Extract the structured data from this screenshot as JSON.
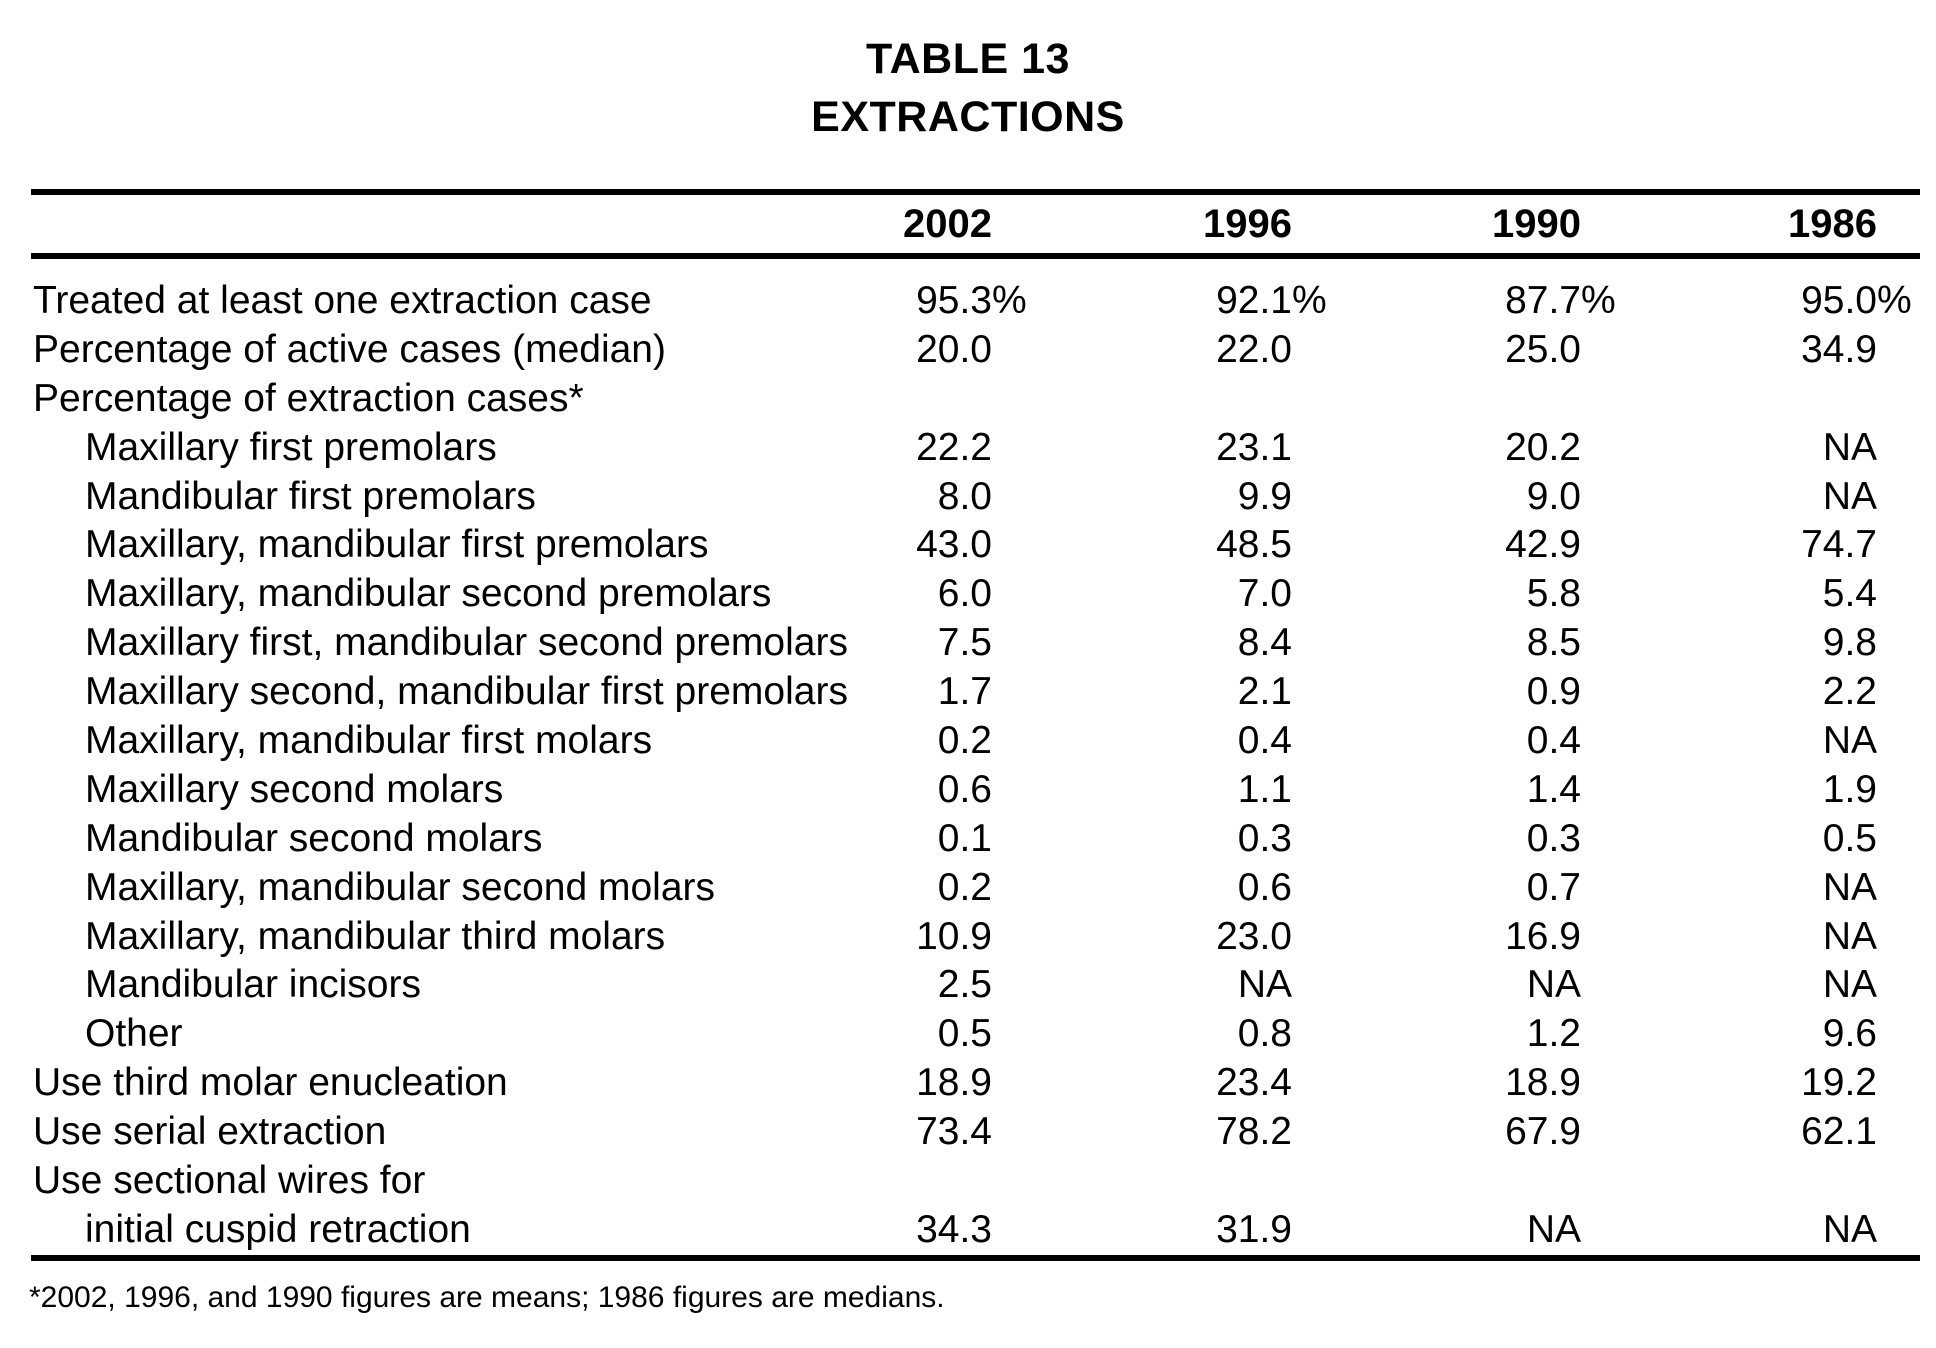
{
  "page": {
    "background_color": "#ffffff",
    "text_color": "#000000"
  },
  "title": {
    "line1": "TABLE 13",
    "line2": "EXTRACTIONS"
  },
  "table": {
    "columns": [
      "2002",
      "1996",
      "1990",
      "1986"
    ],
    "rows": [
      {
        "label": "Treated at least one extraction case",
        "indent": 0,
        "suffix": "%",
        "values": [
          "95.3",
          "92.1",
          "87.7",
          "95.0"
        ]
      },
      {
        "label": "Percentage of active cases (median)",
        "indent": 0,
        "values": [
          "20.0",
          "22.0",
          "25.0",
          "34.9"
        ]
      },
      {
        "label": "Percentage of extraction cases*",
        "indent": 0,
        "values": [
          "",
          "",
          "",
          ""
        ]
      },
      {
        "label": "Maxillary first premolars",
        "indent": 1,
        "values": [
          "22.2",
          "23.1",
          "20.2",
          "NA"
        ]
      },
      {
        "label": "Mandibular first premolars",
        "indent": 1,
        "values": [
          "8.0",
          "9.9",
          "9.0",
          "NA"
        ]
      },
      {
        "label": "Maxillary, mandibular first premolars",
        "indent": 1,
        "values": [
          "43.0",
          "48.5",
          "42.9",
          "74.7"
        ]
      },
      {
        "label": "Maxillary, mandibular second premolars",
        "indent": 1,
        "values": [
          "6.0",
          "7.0",
          "5.8",
          "5.4"
        ]
      },
      {
        "label": "Maxillary first, mandibular second premolars",
        "indent": 1,
        "values": [
          "7.5",
          "8.4",
          "8.5",
          "9.8"
        ]
      },
      {
        "label": "Maxillary second, mandibular first premolars",
        "indent": 1,
        "values": [
          "1.7",
          "2.1",
          "0.9",
          "2.2"
        ]
      },
      {
        "label": "Maxillary, mandibular first molars",
        "indent": 1,
        "values": [
          "0.2",
          "0.4",
          "0.4",
          "NA"
        ]
      },
      {
        "label": "Maxillary second molars",
        "indent": 1,
        "values": [
          "0.6",
          "1.1",
          "1.4",
          "1.9"
        ]
      },
      {
        "label": "Mandibular second molars",
        "indent": 1,
        "values": [
          "0.1",
          "0.3",
          "0.3",
          "0.5"
        ]
      },
      {
        "label": "Maxillary, mandibular second molars",
        "indent": 1,
        "values": [
          "0.2",
          "0.6",
          "0.7",
          "NA"
        ]
      },
      {
        "label": "Maxillary, mandibular third molars",
        "indent": 1,
        "values": [
          "10.9",
          "23.0",
          "16.9",
          "NA"
        ]
      },
      {
        "label": "Mandibular incisors",
        "indent": 1,
        "values": [
          "2.5",
          "NA",
          "NA",
          "NA"
        ]
      },
      {
        "label": "Other",
        "indent": 1,
        "values": [
          "0.5",
          "0.8",
          "1.2",
          "9.6"
        ]
      },
      {
        "label": "Use third molar enucleation",
        "indent": 0,
        "values": [
          "18.9",
          "23.4",
          "18.9",
          "19.2"
        ]
      },
      {
        "label": "Use serial extraction",
        "indent": 0,
        "values": [
          "73.4",
          "78.2",
          "67.9",
          "62.1"
        ]
      },
      {
        "label": "Use sectional wires for",
        "indent": 0,
        "values": [
          "",
          "",
          "",
          ""
        ]
      },
      {
        "label": "initial cuspid retraction",
        "indent": 1,
        "values": [
          "34.3",
          "31.9",
          "NA",
          "NA"
        ]
      }
    ]
  },
  "footnote": "*2002, 1996, and 1990 figures are means; 1986 figures are medians."
}
